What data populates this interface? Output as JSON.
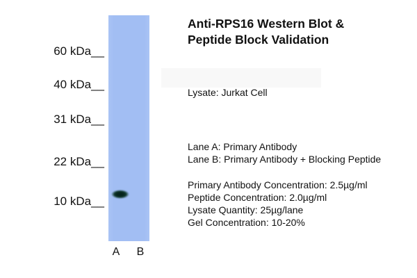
{
  "header": {
    "title_line1": "Anti-RPS16 Western Blot &",
    "title_line2": "Peptide Block Validation"
  },
  "info": {
    "lysate": "Lysate: Jurkat Cell",
    "lane_a": "Lane A: Primary Antibody",
    "lane_b": "Lane B: Primary Antibody + Blocking Peptide",
    "details": [
      "Primary Antibody Concentration: 2.5µg/ml",
      "Peptide Concentration: 2.0µg/ml",
      "Lysate Quantity: 25µg/lane",
      "Gel Concentration: 10-20%"
    ]
  },
  "blot": {
    "markers": [
      {
        "label": "60 kDa__"
      },
      {
        "label": "40 kDa__"
      },
      {
        "label": "31 kDa__"
      },
      {
        "label": "22 kDa__"
      },
      {
        "label": "10 kDa__"
      }
    ],
    "lane_labels": {
      "a": "A",
      "b": "B"
    },
    "colors": {
      "membrane": "#a2bef3",
      "band": "#0a2e23",
      "text": "#111111",
      "background": "#ffffff"
    }
  }
}
